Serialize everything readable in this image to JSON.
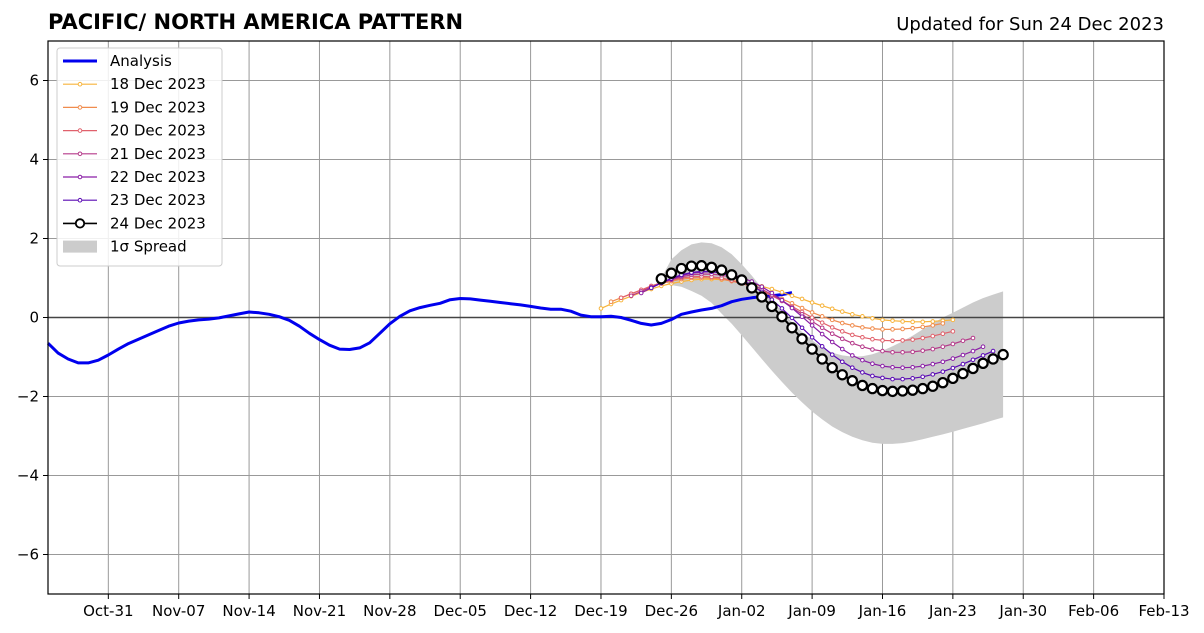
{
  "chart_data": {
    "type": "line",
    "title": "PACIFIC/ NORTH AMERICA PATTERN",
    "subtitle": "Updated for Sun 24 Dec 2023",
    "xlabel": "",
    "ylabel": "",
    "xlim": [
      "2023-10-25",
      "2024-02-13"
    ],
    "ylim": [
      -7,
      7
    ],
    "grid": true,
    "legend_position": "top-left",
    "x_ticks": [
      {
        "date": "2023-10-31",
        "label": "Oct-31"
      },
      {
        "date": "2023-11-07",
        "label": "Nov-07"
      },
      {
        "date": "2023-11-14",
        "label": "Nov-14"
      },
      {
        "date": "2023-11-21",
        "label": "Nov-21"
      },
      {
        "date": "2023-11-28",
        "label": "Nov-28"
      },
      {
        "date": "2023-12-05",
        "label": "Dec-05"
      },
      {
        "date": "2023-12-12",
        "label": "Dec-12"
      },
      {
        "date": "2023-12-19",
        "label": "Dec-19"
      },
      {
        "date": "2023-12-26",
        "label": "Dec-26"
      },
      {
        "date": "2024-01-02",
        "label": "Jan-02"
      },
      {
        "date": "2024-01-09",
        "label": "Jan-09"
      },
      {
        "date": "2024-01-16",
        "label": "Jan-16"
      },
      {
        "date": "2024-01-23",
        "label": "Jan-23"
      },
      {
        "date": "2024-01-30",
        "label": "Jan-30"
      },
      {
        "date": "2024-02-06",
        "label": "Feb-06"
      },
      {
        "date": "2024-02-13",
        "label": "Feb-13"
      }
    ],
    "y_ticks": [
      {
        "value": 6,
        "label": "6"
      },
      {
        "value": 4,
        "label": "4"
      },
      {
        "value": 2,
        "label": "2"
      },
      {
        "value": 0,
        "label": "0"
      },
      {
        "value": -2,
        "label": "−2"
      },
      {
        "value": -4,
        "label": "−4"
      },
      {
        "value": -6,
        "label": "−6"
      }
    ],
    "analysis": {
      "name": "Analysis",
      "color": "#0000ee",
      "start_date": "2023-10-25",
      "values": [
        -0.65,
        -0.9,
        -1.05,
        -1.15,
        -1.15,
        -1.08,
        -0.95,
        -0.8,
        -0.66,
        -0.55,
        -0.44,
        -0.33,
        -0.22,
        -0.14,
        -0.09,
        -0.06,
        -0.04,
        -0.01,
        0.04,
        0.09,
        0.14,
        0.12,
        0.08,
        0.02,
        -0.07,
        -0.22,
        -0.4,
        -0.56,
        -0.7,
        -0.8,
        -0.81,
        -0.77,
        -0.64,
        -0.4,
        -0.16,
        0.03,
        0.17,
        0.25,
        0.31,
        0.36,
        0.45,
        0.48,
        0.47,
        0.44,
        0.41,
        0.38,
        0.35,
        0.32,
        0.28,
        0.24,
        0.21,
        0.21,
        0.16,
        0.06,
        0.02,
        0.02,
        0.03,
        0.0,
        -0.07,
        -0.15,
        -0.19,
        -0.15,
        -0.05,
        0.08,
        0.14,
        0.19,
        0.23,
        0.3,
        0.4,
        0.46,
        0.5,
        0.53,
        0.55,
        0.58,
        0.63
      ]
    },
    "forecasts": [
      {
        "name": "18 Dec 2023",
        "color": "#f7b43c",
        "start_date": "2023-12-19",
        "values": [
          0.23,
          0.34,
          0.44,
          0.54,
          0.63,
          0.72,
          0.8,
          0.86,
          0.91,
          0.95,
          0.97,
          0.97,
          0.96,
          0.94,
          0.9,
          0.85,
          0.79,
          0.72,
          0.64,
          0.55,
          0.47,
          0.38,
          0.3,
          0.22,
          0.15,
          0.08,
          0.03,
          -0.02,
          -0.06,
          -0.08,
          -0.1,
          -0.11,
          -0.11,
          -0.1,
          -0.08,
          -0.06
        ]
      },
      {
        "name": "19 Dec 2023",
        "color": "#f08c4e",
        "start_date": "2023-12-20",
        "values": [
          0.4,
          0.5,
          0.6,
          0.69,
          0.78,
          0.86,
          0.92,
          0.97,
          1.0,
          1.01,
          1.0,
          0.97,
          0.92,
          0.86,
          0.78,
          0.69,
          0.58,
          0.47,
          0.36,
          0.24,
          0.13,
          0.03,
          -0.06,
          -0.14,
          -0.2,
          -0.25,
          -0.28,
          -0.3,
          -0.3,
          -0.29,
          -0.27,
          -0.24,
          -0.2,
          -0.15
        ]
      },
      {
        "name": "20 Dec 2023",
        "color": "#e0616c",
        "start_date": "2023-12-21",
        "values": [
          0.5,
          0.6,
          0.7,
          0.8,
          0.88,
          0.95,
          1.0,
          1.03,
          1.04,
          1.03,
          1.0,
          0.94,
          0.87,
          0.78,
          0.67,
          0.55,
          0.42,
          0.28,
          0.14,
          0.0,
          -0.13,
          -0.25,
          -0.35,
          -0.44,
          -0.5,
          -0.55,
          -0.58,
          -0.59,
          -0.58,
          -0.56,
          -0.52,
          -0.47,
          -0.41,
          -0.35
        ]
      },
      {
        "name": "21 Dec 2023",
        "color": "#b53a8a",
        "start_date": "2023-12-22",
        "values": [
          0.55,
          0.66,
          0.77,
          0.87,
          0.96,
          1.03,
          1.08,
          1.1,
          1.1,
          1.07,
          1.02,
          0.94,
          0.84,
          0.72,
          0.58,
          0.42,
          0.25,
          0.08,
          -0.1,
          -0.26,
          -0.41,
          -0.54,
          -0.65,
          -0.74,
          -0.81,
          -0.85,
          -0.88,
          -0.88,
          -0.87,
          -0.84,
          -0.8,
          -0.74,
          -0.67,
          -0.59,
          -0.52
        ]
      },
      {
        "name": "22 Dec 2023",
        "color": "#8a1ea6",
        "start_date": "2023-12-23",
        "values": [
          0.62,
          0.75,
          0.87,
          0.97,
          1.06,
          1.12,
          1.15,
          1.16,
          1.14,
          1.09,
          1.01,
          0.91,
          0.78,
          0.62,
          0.44,
          0.24,
          0.02,
          -0.2,
          -0.42,
          -0.62,
          -0.8,
          -0.96,
          -1.08,
          -1.17,
          -1.23,
          -1.26,
          -1.27,
          -1.26,
          -1.23,
          -1.18,
          -1.12,
          -1.04,
          -0.95,
          -0.85,
          -0.74
        ]
      },
      {
        "name": "23 Dec 2023",
        "color": "#5a0ab4",
        "start_date": "2023-12-24",
        "values": [
          0.75,
          0.88,
          0.99,
          1.08,
          1.14,
          1.17,
          1.16,
          1.12,
          1.05,
          0.95,
          0.82,
          0.65,
          0.45,
          0.23,
          -0.01,
          -0.26,
          -0.5,
          -0.73,
          -0.94,
          -1.12,
          -1.27,
          -1.39,
          -1.48,
          -1.53,
          -1.56,
          -1.56,
          -1.54,
          -1.5,
          -1.44,
          -1.37,
          -1.28,
          -1.18,
          -1.07,
          -0.96,
          -0.85
        ]
      },
      {
        "name": "24 Dec 2023",
        "color": "#000000",
        "start_date": "2023-12-25",
        "values": [
          0.98,
          1.12,
          1.24,
          1.3,
          1.31,
          1.27,
          1.2,
          1.08,
          0.95,
          0.75,
          0.52,
          0.28,
          0.02,
          -0.26,
          -0.54,
          -0.8,
          -1.05,
          -1.27,
          -1.45,
          -1.6,
          -1.72,
          -1.8,
          -1.85,
          -1.87,
          -1.86,
          -1.84,
          -1.8,
          -1.74,
          -1.65,
          -1.54,
          -1.42,
          -1.29,
          -1.16,
          -1.05,
          -0.94
        ]
      }
    ],
    "spread": {
      "name": "1σ Spread",
      "color": "#cccccc",
      "start_date": "2023-12-25",
      "upper": [
        1.0,
        1.47,
        1.7,
        1.85,
        1.9,
        1.88,
        1.78,
        1.6,
        1.35,
        1.06,
        0.75,
        0.45,
        0.15,
        -0.12,
        -0.37,
        -0.58,
        -0.76,
        -0.89,
        -0.96,
        -0.99,
        -0.98,
        -0.93,
        -0.84,
        -0.73,
        -0.6,
        -0.46,
        -0.3,
        -0.15,
        0.0,
        0.12,
        0.25,
        0.38,
        0.49,
        0.58,
        0.66
      ],
      "lower": [
        0.95,
        0.82,
        0.78,
        0.67,
        0.55,
        0.37,
        0.1,
        -0.16,
        -0.45,
        -0.75,
        -1.05,
        -1.35,
        -1.63,
        -1.9,
        -2.15,
        -2.38,
        -2.58,
        -2.76,
        -2.9,
        -3.02,
        -3.11,
        -3.17,
        -3.2,
        -3.2,
        -3.18,
        -3.14,
        -3.08,
        -3.02,
        -2.96,
        -2.89,
        -2.82,
        -2.75,
        -2.68,
        -2.6,
        -2.53
      ]
    }
  }
}
